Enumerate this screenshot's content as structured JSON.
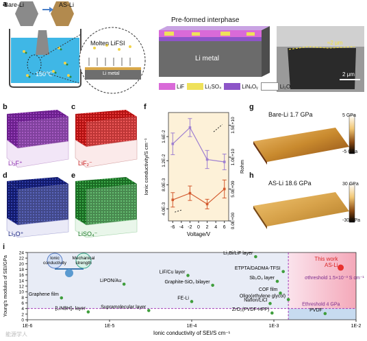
{
  "panel_a": {
    "label": "a",
    "bare_li": "Bare-Li",
    "as_li": "AS-Li",
    "temperature": "150℃",
    "molten": "Molten LiFSI",
    "li_metal_left": "Li metal",
    "preformed": "Pre-formed interphase",
    "li_metal_center": "Li metal",
    "sem_layer": "≈2 μm",
    "sem_scale": "2 μm",
    "legend": [
      {
        "label": "LiF",
        "color": "#d96ad8"
      },
      {
        "label": "Li₂SO₄",
        "color": "#efe15a"
      },
      {
        "label": "LiNₓOᵧ",
        "color": "#8d55c8"
      },
      {
        "label": "Li₂O",
        "color": "#ffffff"
      }
    ]
  },
  "panel_b": {
    "label": "b",
    "ion": "Li₂F⁺"
  },
  "panel_c": {
    "label": "c",
    "ion": "LiF₂⁻"
  },
  "panel_d": {
    "label": "d",
    "ion": "Li₃O⁺"
  },
  "panel_e": {
    "label": "e",
    "ion": "LiSO₄⁻"
  },
  "panel_g": {
    "label": "g",
    "title": "Bare-Li 1.7 GPa",
    "cb_top": "5 GPa",
    "cb_bottom": "-5 GPa"
  },
  "panel_h": {
    "label": "h",
    "title": "AS-Li 18.6 GPa",
    "cb_top": "30 GPa",
    "cb_bottom": "-30 GPa"
  },
  "chart_data": [
    {
      "panel": "f",
      "type": "line",
      "xlabel": "Voltage/V",
      "ylabel_left": "Ionic conductivity/S cm⁻¹",
      "ylabel_right": "Rohm",
      "x": [
        -6,
        -2,
        2,
        6
      ],
      "xticks": [
        "-6",
        "-4",
        "-2",
        "0",
        "2",
        "4",
        "6"
      ],
      "yticks_left": [
        "4.0E-3",
        "8.0E-3",
        "1.2E-2",
        "1.6E-2"
      ],
      "yticks_right": [
        "0.0E+00",
        "5.0E+09",
        "1.0E+10",
        "1.5E+10"
      ],
      "series": [
        {
          "axis": "left",
          "color": "#9e7fd1",
          "y": [
            0.0148,
            0.0175,
            0.0122,
            0.0118
          ],
          "err": [
            0.0018,
            0.0015,
            0.0015,
            0.0013
          ]
        },
        {
          "axis": "left",
          "color": "#d35a2e",
          "y": [
            0.0055,
            0.0066,
            0.0048,
            0.0073
          ],
          "err": [
            0.0012,
            0.0012,
            0.0008,
            0.0015
          ]
        }
      ]
    },
    {
      "panel": "i",
      "type": "scatter",
      "xlabel": "Ionic conductivity of SEI/S cm⁻¹",
      "ylabel": "Young's modulus of SEI/GPa",
      "xscale": "log",
      "xlim": [
        1e-06,
        0.01
      ],
      "ylim": [
        0,
        24
      ],
      "xticks": [
        "1E-6",
        "1E-5",
        "1E-4",
        "1E-3",
        "1E-2"
      ],
      "yticks": [
        "0",
        "2",
        "4",
        "6",
        "8",
        "10",
        "12",
        "14",
        "16",
        "18",
        "20",
        "22",
        "24"
      ],
      "threshold_sigma": "σthreshold 1.5×10⁻³ S cm⁻¹",
      "threshold_E": "Ethreshold 4 GPa",
      "this_work": {
        "label": "This work\nAS-Li",
        "x": 0.0065,
        "y": 18.6
      },
      "inset": {
        "left": "Ionic conductivity",
        "right": "Mechanical strength"
      },
      "points": [
        {
          "label": "Li₃Bi/LiF layer",
          "x": 0.0006,
          "y": 22.5
        },
        {
          "label": "ETPTA/DADMA-TFSI",
          "x": 0.0013,
          "y": 17.2
        },
        {
          "label": "LiF/Cu layer",
          "x": 9e-05,
          "y": 15.8
        },
        {
          "label": "Sb₂O₃ layer",
          "x": 0.0011,
          "y": 13.7
        },
        {
          "label": "LiPON/Au",
          "x": 1.5e-05,
          "y": 12.7
        },
        {
          "label": "Graphite-SiO₂ bilayer",
          "x": 0.00018,
          "y": 12.3
        },
        {
          "label": "Graphene film",
          "x": 2.6e-06,
          "y": 7.8
        },
        {
          "label": "COF film",
          "x": 0.0012,
          "y": 9.5
        },
        {
          "label": "Oligo(ethylene glycol)",
          "x": 0.0015,
          "y": 7.2
        },
        {
          "label": "FE-Li",
          "x": 0.0001,
          "y": 6.5
        },
        {
          "label": "Nafion/LiCl",
          "x": 0.0009,
          "y": 5.8
        },
        {
          "label": "Supramolecular layer",
          "x": 3e-05,
          "y": 3.3
        },
        {
          "label": "[LiNBH]ₙ layer",
          "x": 5.5e-06,
          "y": 2.8
        },
        {
          "label": "ZrO₂(PVDF-HFP)",
          "x": 0.00095,
          "y": 2.4
        },
        {
          "label": "PVDF",
          "x": 0.0042,
          "y": 2.2
        }
      ]
    }
  ],
  "watermark": "能源学人"
}
